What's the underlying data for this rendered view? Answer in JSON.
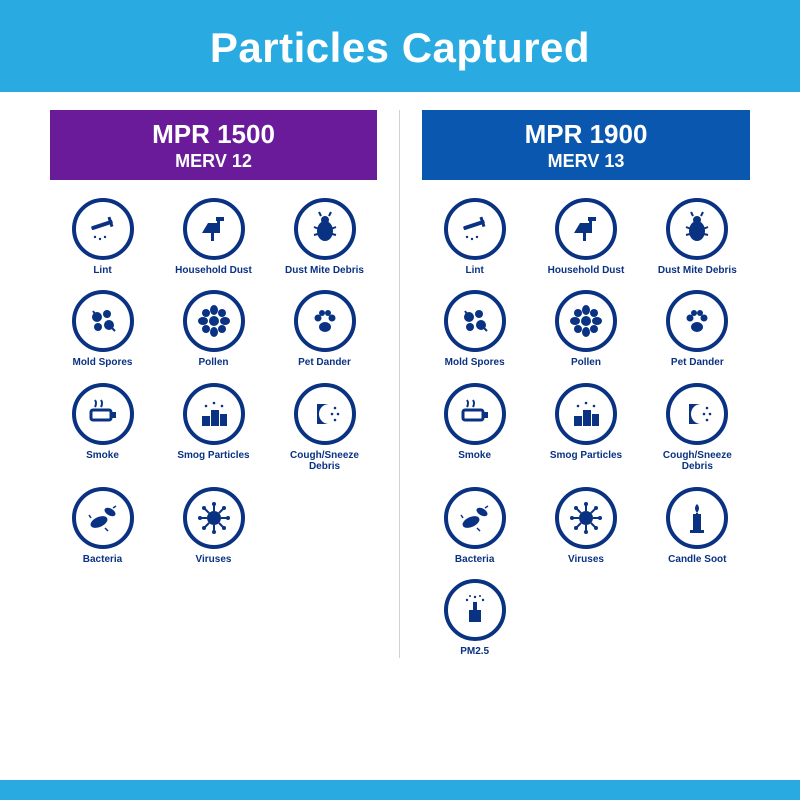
{
  "banner_title": "Particles Captured",
  "accent_color": "#29abe2",
  "icon_color": "#0a3282",
  "icon_border_color": "#0a3282",
  "columns": {
    "left": {
      "header_bg": "#6a1b9a",
      "mpr_label": "MPR 1500",
      "merv_label": "MERV 12",
      "items": [
        "lint",
        "household-dust",
        "dust-mite",
        "mold-spores",
        "pollen",
        "pet-dander",
        "smoke",
        "smog",
        "cough-sneeze",
        "bacteria",
        "viruses"
      ]
    },
    "right": {
      "header_bg": "#0a57b0",
      "mpr_label": "MPR 1900",
      "merv_label": "MERV 13",
      "items": [
        "lint",
        "household-dust",
        "dust-mite",
        "mold-spores",
        "pollen",
        "pet-dander",
        "smoke",
        "smog",
        "cough-sneeze",
        "bacteria",
        "viruses",
        "candle-soot",
        "pm25"
      ]
    }
  },
  "particles": {
    "lint": {
      "label": "Lint"
    },
    "household-dust": {
      "label": "Household Dust"
    },
    "dust-mite": {
      "label": "Dust Mite Debris"
    },
    "mold-spores": {
      "label": "Mold Spores"
    },
    "pollen": {
      "label": "Pollen"
    },
    "pet-dander": {
      "label": "Pet Dander"
    },
    "smoke": {
      "label": "Smoke"
    },
    "smog": {
      "label": "Smog Particles"
    },
    "cough-sneeze": {
      "label": "Cough/Sneeze Debris"
    },
    "bacteria": {
      "label": "Bacteria"
    },
    "viruses": {
      "label": "Viruses"
    },
    "candle-soot": {
      "label": "Candle Soot"
    },
    "pm25": {
      "label": "PM2.5"
    }
  }
}
